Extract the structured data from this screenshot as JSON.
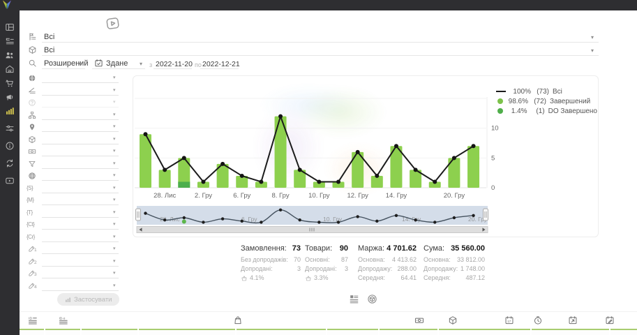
{
  "sidebar": {
    "items": [
      {
        "name": "dashboard",
        "icon": "dashboard",
        "active": false
      },
      {
        "name": "orders",
        "icon": "orders",
        "active": false
      },
      {
        "name": "clients",
        "icon": "clients",
        "active": false
      },
      {
        "name": "market",
        "icon": "market",
        "active": false
      },
      {
        "name": "cart",
        "icon": "cart",
        "active": false
      },
      {
        "name": "marketing",
        "icon": "marketing",
        "active": false
      },
      {
        "name": "analytics",
        "icon": "analytics",
        "active": true
      },
      {
        "name": "settings",
        "icon": "tools",
        "active": false
      },
      {
        "name": "info",
        "icon": "info",
        "active": false
      },
      {
        "name": "sync",
        "icon": "sync",
        "active": false
      },
      {
        "name": "video",
        "icon": "video",
        "active": false
      }
    ]
  },
  "filters": {
    "source_select": {
      "icon": "status-tree",
      "value": "Всі"
    },
    "product_select": {
      "icon": "package",
      "value": "Всі"
    },
    "search_mode": {
      "value": "Розширений"
    },
    "date_field": {
      "icon": "calendar-check",
      "value": "Здане"
    },
    "date_from_label": "з",
    "date_from": "2022-11-20",
    "date_to_label": "по",
    "date_to": "2022-12-21",
    "panel": [
      {
        "icon": "world",
        "name": "country-filter"
      },
      {
        "icon": "layers",
        "name": "stage-filter"
      },
      {
        "icon": "help",
        "name": "help-filter",
        "disabled": true
      },
      {
        "icon": "sitemap",
        "name": "structure-filter"
      },
      {
        "icon": "pin",
        "name": "location-filter"
      },
      {
        "icon": "box",
        "name": "product-filter"
      },
      {
        "icon": "money",
        "name": "payment-filter"
      },
      {
        "icon": "funnel",
        "name": "funnel-filter"
      },
      {
        "icon": "globe",
        "name": "site-filter"
      },
      {
        "icon": "brace",
        "label": "{S}",
        "name": "utm-source-filter"
      },
      {
        "icon": "brace",
        "label": "{M}",
        "name": "utm-medium-filter"
      },
      {
        "icon": "brace",
        "label": "{T}",
        "name": "utm-term-filter"
      },
      {
        "icon": "brace",
        "label": "{Ct}",
        "name": "utm-content-filter"
      },
      {
        "icon": "brace",
        "label": "{Cr}",
        "name": "utm-campaign-filter"
      },
      {
        "icon": "pencil",
        "num": "1",
        "name": "custom-field-1-filter"
      },
      {
        "icon": "pencil",
        "num": "2",
        "name": "custom-field-2-filter"
      },
      {
        "icon": "pencil",
        "num": "3",
        "name": "custom-field-3-filter"
      },
      {
        "icon": "pencil",
        "num": "4",
        "name": "custom-field-4-filter"
      }
    ],
    "apply_label": "Застосувати"
  },
  "chart_data": {
    "type": "bar",
    "categories": [
      "",
      "28. Лис",
      "",
      "2. Гру",
      "",
      "6. Гру",
      "",
      "8. Гру",
      "",
      "10. Гру",
      "",
      "12. Гру",
      "",
      "14. Гру",
      "",
      "",
      "20. Гру",
      ""
    ],
    "series": [
      {
        "name": "Всі",
        "type": "line",
        "color": "#1b1b1b",
        "values": [
          9,
          3,
          5,
          1,
          4,
          2,
          1,
          12,
          3,
          1,
          1,
          6,
          2,
          7,
          3,
          1,
          5,
          7
        ]
      },
      {
        "name": "Завершений",
        "type": "bar",
        "color": "#8dd04e",
        "values": [
          9,
          3,
          4,
          1,
          4,
          2,
          1,
          12,
          3,
          1,
          1,
          6,
          2,
          7,
          3,
          1,
          5,
          7
        ]
      },
      {
        "name": "DO Завершено",
        "type": "bar",
        "color": "#4cae4c",
        "values": [
          0,
          0,
          1,
          0,
          0,
          0,
          0,
          0,
          0,
          0,
          0,
          0,
          0,
          0,
          0,
          0,
          0,
          0
        ]
      }
    ],
    "ylim": [
      0,
      15
    ],
    "yticks": [
      0,
      5,
      10
    ],
    "grid": true,
    "legend_position": "top-right",
    "legend": [
      {
        "swatch": "line",
        "color": "#1b1b1b",
        "pct": "100%",
        "count": "(73)",
        "label": "Всі"
      },
      {
        "swatch": "dot",
        "color": "#7cc24a",
        "pct": "98.6%",
        "count": "(72)",
        "label": "Завершений"
      },
      {
        "swatch": "dot",
        "color": "#4fae4a",
        "pct": "1.4%",
        "count": "(1)",
        "label": "DO Завершено"
      }
    ],
    "navigator_labels": [
      "28. Лис",
      "6. Гру",
      "10. Гру",
      "14. Гру",
      "20. Гру"
    ]
  },
  "stats": {
    "columns": [
      {
        "title": "Замовлення:",
        "value": "73",
        "rows": [
          {
            "label": "Без допродажів:",
            "value": "70"
          },
          {
            "label": "Допродані:",
            "value": "3"
          },
          {
            "icon": "basket",
            "label": "4.1%",
            "value": ""
          }
        ]
      },
      {
        "title": "Товари:",
        "value": "90",
        "rows": [
          {
            "label": "Основні:",
            "value": "87"
          },
          {
            "label": "Допродані:",
            "value": "3"
          },
          {
            "icon": "basket",
            "label": "3.3%",
            "value": ""
          }
        ]
      },
      {
        "title": "Маржа:",
        "value": "4 701.62",
        "rows": [
          {
            "label": "Основна:",
            "value": "4 413.62"
          },
          {
            "label": "Допродажу:",
            "value": "288.00"
          },
          {
            "label": "Середня:",
            "value": "64.41"
          }
        ]
      },
      {
        "title": "Сума:",
        "value": "35 560.00",
        "rows": [
          {
            "label": "Основна:",
            "value": "33 812.00"
          },
          {
            "label": "Допродажу:",
            "value": "1 748.00"
          },
          {
            "label": "Середня:",
            "value": "487.12"
          }
        ]
      }
    ]
  },
  "view_toggles": [
    {
      "icon": "report-list",
      "name": "list-view-toggle"
    },
    {
      "icon": "box-view",
      "name": "products-view-toggle"
    }
  ],
  "footer": {
    "icons": [
      {
        "icon": "id-sort",
        "name": "order-id-column-icon"
      },
      {
        "icon": "id-link",
        "name": "external-id-column-icon"
      },
      {
        "icon": "bag",
        "name": "items-column-icon"
      },
      {
        "icon": "money",
        "name": "payment-column-icon"
      },
      {
        "icon": "cube",
        "name": "product-column-icon"
      },
      {
        "icon": "cal-17",
        "name": "date-created-column-icon"
      },
      {
        "icon": "clock",
        "name": "time-column-icon"
      },
      {
        "icon": "cal-arrow",
        "name": "date-shipped-column-icon"
      },
      {
        "icon": "cal-pencil",
        "name": "date-edited-column-icon"
      }
    ]
  }
}
